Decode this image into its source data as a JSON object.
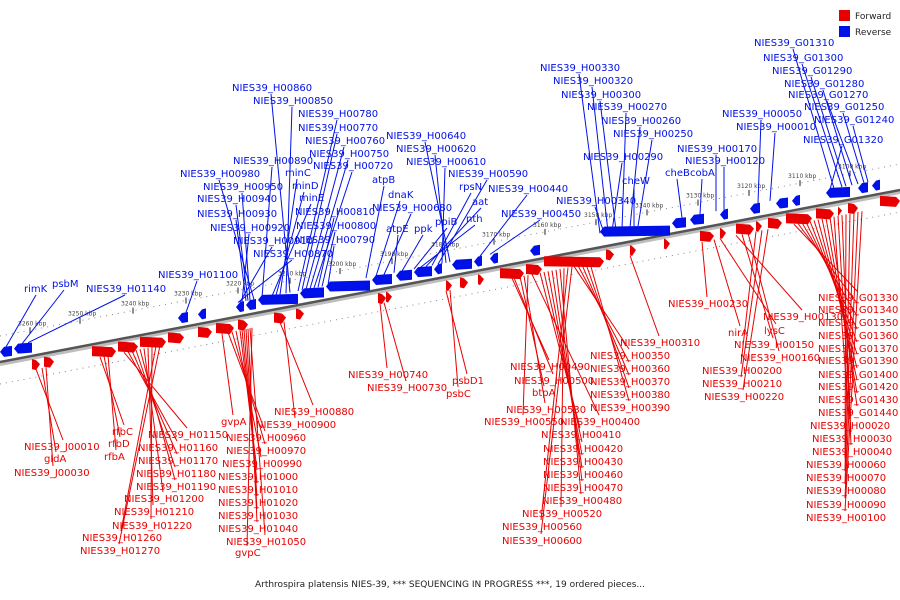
{
  "caption": "Arthrospira platensis NIES-39, *** SEQUENCING IN PROGRESS ***, 19 ordered pieces...",
  "legend": [
    {
      "label": "Forward",
      "color": "#e80000"
    },
    {
      "label": "Reverse",
      "color": "#0010e8"
    }
  ],
  "ticks": [
    "3260 kbp",
    "3250 kbp",
    "3240 kbp",
    "3230 kbp",
    "3220 kbp",
    "3210 kbp",
    "3200 kbp",
    "3190 kbp",
    "3180 kbp",
    "3170 kbp",
    "3160 kbp",
    "3150 kbp",
    "3140 kbp",
    "3130 kbp",
    "3120 kbp",
    "3110 kbp",
    "3100 kbp"
  ],
  "reverse_labels": [
    "rimK",
    "psbM",
    "NIES39_H01140",
    "NIES39_H01100",
    "NIES39_H00870",
    "NIES39_H00910",
    "NIES39_H00920",
    "NIES39_H00930",
    "NIES39_H00940",
    "NIES39_H00950",
    "NIES39_H00980",
    "NIES39_H00890",
    "minE",
    "minD",
    "minC",
    "NIES39_H00850",
    "NIES39_H00860",
    "NIES39_H00780",
    "NIES39_H00770",
    "NIES39_H00760",
    "NIES39_H00750",
    "NIES39_H00720",
    "NIES39_H00810",
    "NIES39_H00800",
    "NIES39_H00790",
    "atpB",
    "dnaK",
    "NIES39_H00680",
    "atpE",
    "ppk",
    "ppiB",
    "nth",
    "aat",
    "rpsN",
    "NIES39_H00590",
    "NIES39_H00610",
    "NIES39_H00620",
    "NIES39_H00640",
    "NIES39_H00440",
    "NIES39_H00450",
    "NIES39_H00330",
    "NIES39_H00320",
    "NIES39_H00300",
    "NIES39_H00270",
    "NIES39_H00260",
    "NIES39_H00250",
    "NIES39_H00290",
    "cheW",
    "NIES39_H00340",
    "cheB",
    "cobA",
    "NIES39_H00170",
    "NIES39_H00120",
    "NIES39_H00050",
    "NIES39_H00010",
    "NIES39_G01310",
    "NIES39_G01300",
    "NIES39_G01290",
    "NIES39_G01280",
    "NIES39_G01270",
    "NIES39_G01250",
    "NIES39_G01240",
    "NIES39_G01320"
  ],
  "forward_labels": [
    "NIES39_J00010",
    "gldA",
    "NIES39_J00030",
    "rfbC",
    "rfbD",
    "rfbA",
    "NIES39_H01150",
    "NIES39_H01160",
    "NIES39_H01170",
    "NIES39_H01180",
    "NIES39_H01190",
    "NIES39_H01200",
    "NIES39_H01210",
    "NIES39_H01220",
    "NIES39_H01260",
    "NIES39_H01270",
    "gvpA",
    "NIES39_H00960",
    "NIES39_H00970",
    "NIES39_H00990",
    "NIES39_H01000",
    "NIES39_H01010",
    "NIES39_H01020",
    "NIES39_H01030",
    "NIES39_H01040",
    "NIES39_H01050",
    "gvpC",
    "NIES39_H00880",
    "NIES39_H00900",
    "NIES39_H00740",
    "NIES39_H00730",
    "psbD1",
    "psbC",
    "NIES39_H00490",
    "NIES39_H00500",
    "btpA",
    "NIES39_H00530",
    "NIES39_H00550",
    "NIES39_H00400",
    "NIES39_H00410",
    "NIES39_H00420",
    "NIES39_H00430",
    "NIES39_H00460",
    "NIES39_H00470",
    "NIES39_H00480",
    "NIES39_H00520",
    "NIES39_H00560",
    "NIES39_H00600",
    "NIES39_H00310",
    "NIES39_H00350",
    "NIES39_H00360",
    "NIES39_H00370",
    "NIES39_H00380",
    "NIES39_H00390",
    "NIES39_H00230",
    "nirA",
    "lysC",
    "NIES39_H00130",
    "NIES39_H00150",
    "NIES39_H00160",
    "NIES39_H00200",
    "NIES39_H00210",
    "NIES39_H00220",
    "NIES39_G01330",
    "NIES39_G01340",
    "NIES39_G01350",
    "NIES39_G01360",
    "NIES39_G01370",
    "NIES39_G01390",
    "NIES39_G01400",
    "NIES39_G01420",
    "NIES39_G01430",
    "NIES39_G01440",
    "NIES39_H00020",
    "NIES39_H00030",
    "NIES39_H00040",
    "NIES39_H00060",
    "NIES39_H00070",
    "NIES39_H00080",
    "NIES39_H00090",
    "NIES39_H00100"
  ]
}
